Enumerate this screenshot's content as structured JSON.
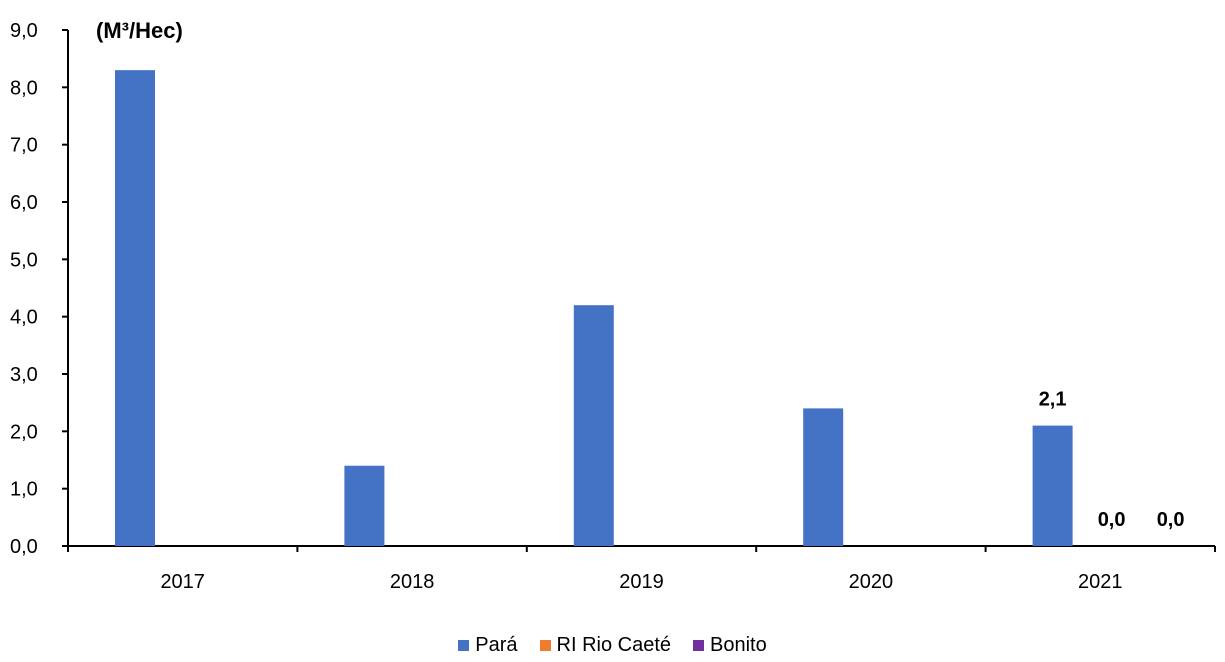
{
  "chart_data": {
    "type": "bar",
    "unit_label": "(M³/Hec)",
    "categories": [
      "2017",
      "2018",
      "2019",
      "2020",
      "2021"
    ],
    "series": [
      {
        "name": "Pará",
        "color": "#4472C4",
        "values": [
          8.3,
          1.4,
          4.2,
          2.4,
          2.1
        ]
      },
      {
        "name": "RI Rio Caeté",
        "color": "#ED7D31",
        "values": [
          null,
          null,
          null,
          null,
          0.0
        ]
      },
      {
        "name": "Bonito",
        "color": "#7030A0",
        "values": [
          null,
          null,
          null,
          null,
          0.0
        ]
      }
    ],
    "y_ticks": [
      "0,0",
      "1,0",
      "2,0",
      "3,0",
      "4,0",
      "5,0",
      "6,0",
      "7,0",
      "8,0",
      "9,0"
    ],
    "ylim": [
      0,
      9
    ],
    "data_labels": [
      {
        "series": 0,
        "category": 4,
        "text": "2,1"
      },
      {
        "series": 1,
        "category": 4,
        "text": "0,0"
      },
      {
        "series": 2,
        "category": 4,
        "text": "0,0"
      }
    ],
    "legend_position": "bottom",
    "grid": false
  }
}
